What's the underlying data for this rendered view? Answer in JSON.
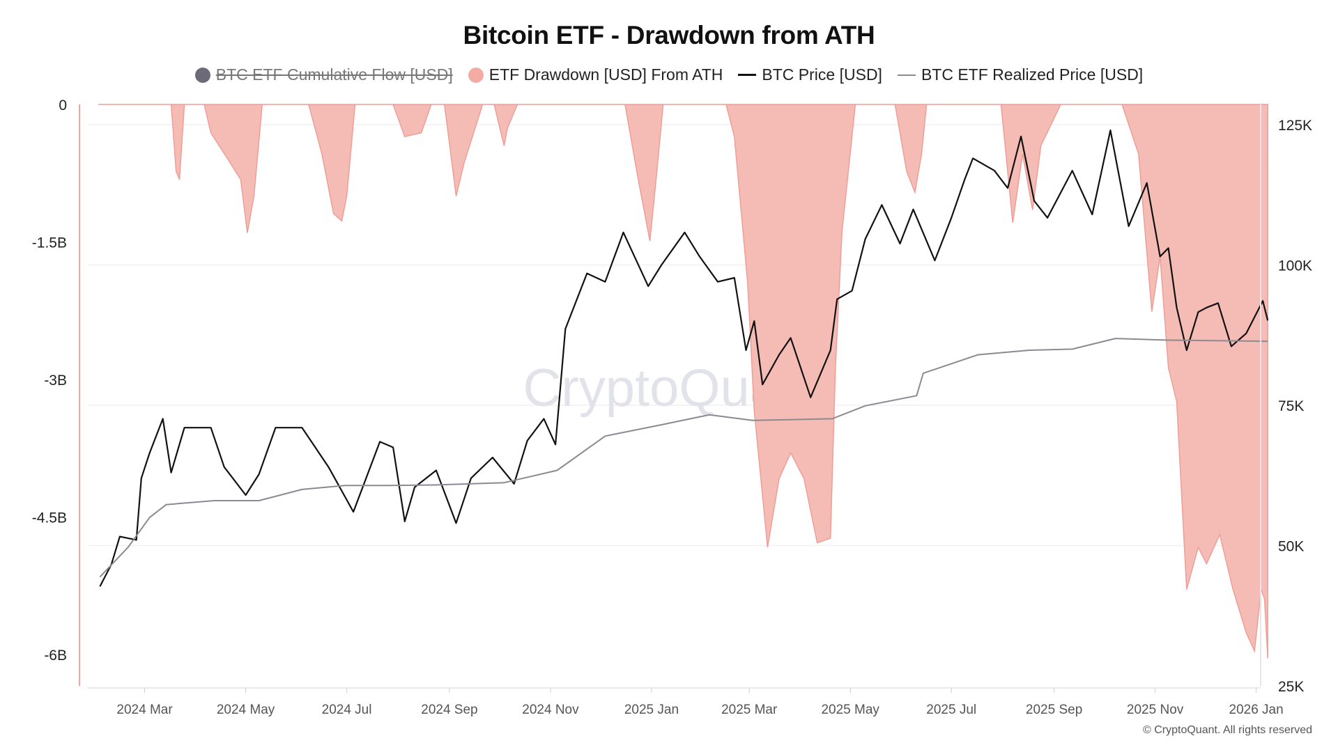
{
  "title": "Bitcoin ETF - Drawdown from ATH",
  "legend": [
    {
      "label": "BTC ETF Cumulative Flow [USD]",
      "marker": "dot",
      "color": "#6b6a76",
      "hidden": true
    },
    {
      "label": "ETF Drawdown [USD] From ATH",
      "marker": "dot",
      "color": "#f4aba4",
      "hidden": false
    },
    {
      "label": "BTC Price [USD]",
      "marker": "line",
      "color": "#111111",
      "hidden": false
    },
    {
      "label": "BTC ETF Realized Price [USD]",
      "marker": "line",
      "color": "#8a8a92",
      "hidden": false
    }
  ],
  "watermark": "CryptoQuant",
  "copyright": "© CryptoQuant. All rights reserved",
  "chart_data": {
    "type": "line",
    "title": "Bitcoin ETF - Drawdown from ATH",
    "x_range": [
      "2024-02-02",
      "2026-01-10"
    ],
    "x_ticks": [
      "2024 Mar",
      "2024 May",
      "2024 Jul",
      "2024 Sep",
      "2024 Nov",
      "2025 Jan",
      "2025 Mar",
      "2025 May",
      "2025 Jul",
      "2025 Sep",
      "2025 Nov",
      "2026 Jan"
    ],
    "x_tick_dates": [
      "2024-03-01",
      "2024-05-01",
      "2024-07-01",
      "2024-09-01",
      "2024-11-01",
      "2025-01-01",
      "2025-03-01",
      "2025-05-01",
      "2025-07-01",
      "2025-09-01",
      "2025-11-01",
      "2026-01-01"
    ],
    "left_axis": {
      "ticks": [
        "0",
        "-1.5B",
        "-3B",
        "-4.5B",
        "-6B"
      ],
      "tick_values": [
        0,
        -1.5,
        -3,
        -4.5,
        -6
      ],
      "unit": "billion USD",
      "ylim": [
        -6.34,
        0
      ]
    },
    "right_axis": {
      "ticks": [
        "125K",
        "100K",
        "75K",
        "50K",
        "25K"
      ],
      "tick_values": [
        125,
        100,
        75,
        50,
        25
      ],
      "unit": "thousand USD",
      "ylim": [
        25,
        128.6
      ]
    },
    "grid": "horizontal at right-axis ticks",
    "legend_position": "top",
    "series": [
      {
        "name": "ETF Drawdown [USD] From ATH",
        "type": "area",
        "axis": "left",
        "color": "#f4aba4",
        "points": [
          [
            "2024-02-02",
            0
          ],
          [
            "2024-03-17",
            0
          ],
          [
            "2024-03-20",
            -0.73
          ],
          [
            "2024-03-22",
            -0.82
          ],
          [
            "2024-03-25",
            0
          ],
          [
            "2024-04-06",
            0
          ],
          [
            "2024-04-10",
            -0.31
          ],
          [
            "2024-04-20",
            -0.59
          ],
          [
            "2024-04-28",
            -0.82
          ],
          [
            "2024-05-02",
            -1.4
          ],
          [
            "2024-05-06",
            -1.0
          ],
          [
            "2024-05-11",
            0
          ],
          [
            "2024-06-08",
            0
          ],
          [
            "2024-06-16",
            -0.54
          ],
          [
            "2024-06-23",
            -1.19
          ],
          [
            "2024-06-28",
            -1.27
          ],
          [
            "2024-07-01",
            -1.0
          ],
          [
            "2024-07-06",
            0
          ],
          [
            "2024-07-29",
            0
          ],
          [
            "2024-08-05",
            -0.35
          ],
          [
            "2024-08-15",
            -0.31
          ],
          [
            "2024-08-21",
            0
          ],
          [
            "2024-08-29",
            0
          ],
          [
            "2024-09-05",
            -1.0
          ],
          [
            "2024-09-10",
            -0.63
          ],
          [
            "2024-09-21",
            0
          ],
          [
            "2024-09-28",
            0
          ],
          [
            "2024-10-04",
            -0.45
          ],
          [
            "2024-10-06",
            -0.26
          ],
          [
            "2024-10-12",
            0
          ],
          [
            "2024-12-16",
            0
          ],
          [
            "2024-12-24",
            -0.82
          ],
          [
            "2024-12-31",
            -1.49
          ],
          [
            "2025-01-04",
            -0.77
          ],
          [
            "2025-01-08",
            0
          ],
          [
            "2025-02-15",
            0
          ],
          [
            "2025-02-20",
            -0.35
          ],
          [
            "2025-02-28",
            -1.94
          ],
          [
            "2025-03-04",
            -3.34
          ],
          [
            "2025-03-12",
            -4.83
          ],
          [
            "2025-03-19",
            -4.08
          ],
          [
            "2025-03-26",
            -3.8
          ],
          [
            "2025-04-03",
            -4.08
          ],
          [
            "2025-04-11",
            -4.78
          ],
          [
            "2025-04-19",
            -4.73
          ],
          [
            "2025-04-22",
            -2.87
          ],
          [
            "2025-04-26",
            -1.38
          ],
          [
            "2025-05-02",
            -0.35
          ],
          [
            "2025-05-04",
            0
          ],
          [
            "2025-05-28",
            0
          ],
          [
            "2025-06-04",
            -0.73
          ],
          [
            "2025-06-09",
            -0.96
          ],
          [
            "2025-06-13",
            -0.54
          ],
          [
            "2025-06-16",
            0
          ],
          [
            "2025-07-31",
            0
          ],
          [
            "2025-08-07",
            -1.29
          ],
          [
            "2025-08-13",
            -0.54
          ],
          [
            "2025-08-19",
            -1.15
          ],
          [
            "2025-08-24",
            -0.45
          ],
          [
            "2025-09-05",
            0
          ],
          [
            "2025-10-12",
            0
          ],
          [
            "2025-10-22",
            -0.54
          ],
          [
            "2025-10-30",
            -2.26
          ],
          [
            "2025-11-04",
            -1.66
          ],
          [
            "2025-11-09",
            -2.87
          ],
          [
            "2025-11-14",
            -3.24
          ],
          [
            "2025-11-20",
            -5.29
          ],
          [
            "2025-11-27",
            -4.83
          ],
          [
            "2025-12-02",
            -5.01
          ],
          [
            "2025-12-10",
            -4.69
          ],
          [
            "2025-12-18",
            -5.29
          ],
          [
            "2025-12-26",
            -5.76
          ],
          [
            "2025-12-31",
            -5.96
          ],
          [
            "2026-01-04",
            -5.29
          ],
          [
            "2026-01-06",
            -5.39
          ],
          [
            "2026-01-08",
            -6.04
          ]
        ]
      },
      {
        "name": "BTC Price [USD]",
        "type": "line",
        "axis": "right",
        "color": "#111111",
        "points": [
          [
            "2024-02-03",
            42.7
          ],
          [
            "2024-02-10",
            46.7
          ],
          [
            "2024-02-15",
            51.6
          ],
          [
            "2024-02-25",
            51
          ],
          [
            "2024-02-28",
            62
          ],
          [
            "2024-03-04",
            66.5
          ],
          [
            "2024-03-12",
            72.6
          ],
          [
            "2024-03-17",
            63
          ],
          [
            "2024-03-25",
            71
          ],
          [
            "2024-04-02",
            71
          ],
          [
            "2024-04-10",
            71
          ],
          [
            "2024-04-18",
            64
          ],
          [
            "2024-05-01",
            59
          ],
          [
            "2024-05-09",
            62.7
          ],
          [
            "2024-05-19",
            71
          ],
          [
            "2024-06-04",
            71
          ],
          [
            "2024-06-20",
            64
          ],
          [
            "2024-07-05",
            56
          ],
          [
            "2024-07-21",
            68.5
          ],
          [
            "2024-07-29",
            67.5
          ],
          [
            "2024-08-05",
            54.3
          ],
          [
            "2024-08-11",
            60.4
          ],
          [
            "2024-08-24",
            63.4
          ],
          [
            "2024-09-05",
            54
          ],
          [
            "2024-09-14",
            62
          ],
          [
            "2024-09-27",
            65.7
          ],
          [
            "2024-10-10",
            61
          ],
          [
            "2024-10-18",
            68.7
          ],
          [
            "2024-10-28",
            72.6
          ],
          [
            "2024-11-04",
            68
          ],
          [
            "2024-11-10",
            88.6
          ],
          [
            "2024-11-23",
            98.5
          ],
          [
            "2024-12-04",
            97
          ],
          [
            "2024-12-15",
            105.8
          ],
          [
            "2024-12-30",
            96.2
          ],
          [
            "2025-01-07",
            100
          ],
          [
            "2025-01-21",
            105.8
          ],
          [
            "2025-01-30",
            101.5
          ],
          [
            "2025-02-10",
            97
          ],
          [
            "2025-02-20",
            97.7
          ],
          [
            "2025-02-27",
            84.8
          ],
          [
            "2025-03-04",
            90
          ],
          [
            "2025-03-09",
            78.7
          ],
          [
            "2025-03-19",
            84
          ],
          [
            "2025-03-26",
            87
          ],
          [
            "2025-04-07",
            76.4
          ],
          [
            "2025-04-19",
            84.8
          ],
          [
            "2025-04-23",
            93.9
          ],
          [
            "2025-05-02",
            95.4
          ],
          [
            "2025-05-10",
            104.6
          ],
          [
            "2025-05-20",
            110.7
          ],
          [
            "2025-05-31",
            103.8
          ],
          [
            "2025-06-08",
            109.9
          ],
          [
            "2025-06-21",
            100.8
          ],
          [
            "2025-07-01",
            108.4
          ],
          [
            "2025-07-09",
            115.2
          ],
          [
            "2025-07-14",
            119
          ],
          [
            "2025-07-27",
            116.8
          ],
          [
            "2025-08-04",
            113.7
          ],
          [
            "2025-08-12",
            122.9
          ],
          [
            "2025-08-20",
            111.4
          ],
          [
            "2025-08-28",
            108.4
          ],
          [
            "2025-09-12",
            116.8
          ],
          [
            "2025-09-24",
            109
          ],
          [
            "2025-10-05",
            124
          ],
          [
            "2025-10-16",
            106.9
          ],
          [
            "2025-10-27",
            114.6
          ],
          [
            "2025-11-04",
            101.5
          ],
          [
            "2025-11-09",
            103
          ],
          [
            "2025-11-14",
            92.4
          ],
          [
            "2025-11-20",
            84.8
          ],
          [
            "2025-11-27",
            91.6
          ],
          [
            "2025-12-02",
            92.4
          ],
          [
            "2025-12-09",
            93.2
          ],
          [
            "2025-12-17",
            85.5
          ],
          [
            "2025-12-26",
            87.8
          ],
          [
            "2026-01-05",
            93.6
          ],
          [
            "2026-01-08",
            90.1
          ]
        ]
      },
      {
        "name": "BTC ETF Realized Price [USD]",
        "type": "line",
        "axis": "right",
        "color": "#8a8a92",
        "points": [
          [
            "2024-02-03",
            44.4
          ],
          [
            "2024-02-20",
            49.7
          ],
          [
            "2024-03-04",
            55
          ],
          [
            "2024-03-14",
            57.3
          ],
          [
            "2024-04-12",
            58
          ],
          [
            "2024-05-09",
            58
          ],
          [
            "2024-06-04",
            60
          ],
          [
            "2024-06-30",
            60.7
          ],
          [
            "2024-07-26",
            60.7
          ],
          [
            "2024-08-23",
            60.8
          ],
          [
            "2024-10-04",
            61.2
          ],
          [
            "2024-11-05",
            63.4
          ],
          [
            "2024-12-04",
            69.5
          ],
          [
            "2025-01-05",
            71.4
          ],
          [
            "2025-02-05",
            73.3
          ],
          [
            "2025-03-03",
            72.3
          ],
          [
            "2025-04-20",
            72.6
          ],
          [
            "2025-05-10",
            74.9
          ],
          [
            "2025-06-10",
            76.7
          ],
          [
            "2025-06-14",
            80.7
          ],
          [
            "2025-07-17",
            84
          ],
          [
            "2025-08-17",
            84.8
          ],
          [
            "2025-09-12",
            85
          ],
          [
            "2025-10-08",
            86.9
          ],
          [
            "2025-11-09",
            86.6
          ],
          [
            "2026-01-08",
            86.4
          ]
        ]
      }
    ]
  }
}
